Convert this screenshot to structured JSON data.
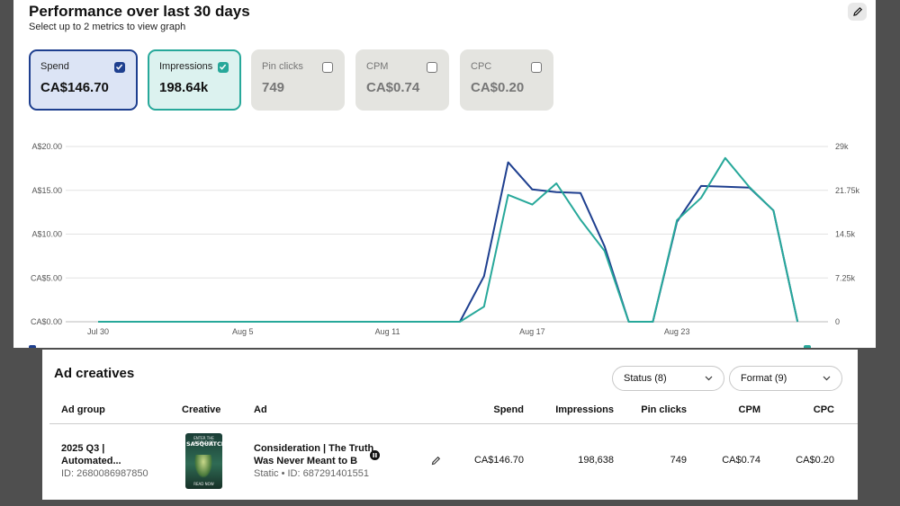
{
  "performance": {
    "title": "Performance over last 30 days",
    "subtitle": "Select up to 2 metrics to view graph",
    "metrics": [
      {
        "label": "Spend",
        "value": "CA$146.70",
        "checked": true
      },
      {
        "label": "Impressions",
        "value": "198.64k",
        "checked": true
      },
      {
        "label": "Pin clicks",
        "value": "749",
        "checked": false
      },
      {
        "label": "CPM",
        "value": "CA$0.74",
        "checked": false
      },
      {
        "label": "CPC",
        "value": "CA$0.20",
        "checked": false
      }
    ],
    "colors": {
      "spend": "#1e3f8f",
      "impressions": "#27a89a"
    }
  },
  "chart_data": {
    "type": "line",
    "x_ticks": [
      "Jul 30",
      "Aug 5",
      "Aug 11",
      "Aug 17",
      "Aug 23"
    ],
    "y_left_ticks": [
      "CA$0.00",
      "CA$5.00",
      "A$10.00",
      "A$15.00",
      "A$20.00"
    ],
    "y_left_lim": [
      0,
      20
    ],
    "y_right_ticks": [
      "0",
      "7.25k",
      "14.5k",
      "21.75k",
      "29k"
    ],
    "y_right_lim": [
      0,
      29000
    ],
    "x": [
      "Jul 30",
      "Jul 31",
      "Aug 1",
      "Aug 2",
      "Aug 3",
      "Aug 4",
      "Aug 5",
      "Aug 6",
      "Aug 7",
      "Aug 8",
      "Aug 9",
      "Aug 10",
      "Aug 11",
      "Aug 12",
      "Aug 13",
      "Aug 14",
      "Aug 15",
      "Aug 16",
      "Aug 17",
      "Aug 18",
      "Aug 19",
      "Aug 20",
      "Aug 21",
      "Aug 22",
      "Aug 23",
      "Aug 24",
      "Aug 25",
      "Aug 26",
      "Aug 27",
      "Aug 28"
    ],
    "series": [
      {
        "name": "Spend",
        "axis": "left",
        "values": [
          0,
          0,
          0,
          0,
          0,
          0,
          0,
          0,
          0,
          0,
          0,
          0,
          0,
          0,
          0,
          0,
          5.2,
          18.2,
          15.1,
          14.8,
          14.7,
          8.6,
          0,
          0,
          11.4,
          15.5,
          15.4,
          15.3,
          12.7,
          0
        ]
      },
      {
        "name": "Impressions",
        "axis": "right",
        "values": [
          0,
          0,
          0,
          0,
          0,
          0,
          0,
          0,
          0,
          0,
          0,
          0,
          0,
          0,
          0,
          0,
          2500,
          21000,
          19400,
          22900,
          16900,
          11700,
          0,
          0,
          16800,
          20500,
          27100,
          22300,
          18400,
          0
        ]
      }
    ],
    "grid": true,
    "legend": "bottom"
  },
  "creatives": {
    "title": "Ad creatives",
    "status_filter": "Status (8)",
    "format_filter": "Format (9)",
    "columns": [
      "Ad group",
      "Creative",
      "Ad",
      "Spend",
      "Impressions",
      "Pin clicks",
      "CPM",
      "CPC"
    ],
    "row": {
      "ad_group_name": "2025 Q3 |",
      "ad_group_name2": "Automated...",
      "ad_group_id": "ID: 2680086987850",
      "thumb_line1": "ENTER THE WORLD OF",
      "thumb_title": "SASQUATCH",
      "thumb_cta": "READ NOW",
      "ad_title1": "Consideration | The Truth",
      "ad_title2": "Was Never Meant to B",
      "ad_meta": "Static • ID: 687291401551",
      "spend": "CA$146.70",
      "impressions": "198,638",
      "pin_clicks": "749",
      "cpm": "CA$0.74",
      "cpc": "CA$0.20"
    }
  }
}
